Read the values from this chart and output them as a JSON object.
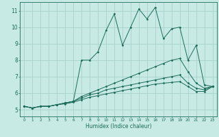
{
  "xlabel": "Humidex (Indice chaleur)",
  "ylabel": "",
  "xlim": [
    -0.5,
    23.5
  ],
  "ylim": [
    4.6,
    11.5
  ],
  "xticks": [
    0,
    1,
    2,
    3,
    4,
    5,
    6,
    7,
    8,
    9,
    10,
    11,
    12,
    13,
    14,
    15,
    16,
    17,
    18,
    19,
    20,
    21,
    22,
    23
  ],
  "yticks": [
    5,
    6,
    7,
    8,
    9,
    10,
    11
  ],
  "bg_color": "#c8eae4",
  "grid_color": "#a0ccc6",
  "line_color": "#1a6b5a",
  "lines": [
    {
      "x": [
        0,
        1,
        2,
        3,
        4,
        5,
        6,
        7,
        8,
        9,
        10,
        11,
        12,
        13,
        14,
        15,
        16,
        17,
        18,
        19,
        20,
        21,
        22,
        23
      ],
      "y": [
        5.2,
        5.1,
        5.2,
        5.2,
        5.3,
        5.4,
        5.5,
        8.0,
        8.0,
        8.5,
        9.8,
        10.8,
        8.9,
        10.0,
        11.1,
        10.5,
        11.2,
        9.3,
        9.9,
        10.0,
        8.0,
        8.9,
        6.5,
        6.4
      ]
    },
    {
      "x": [
        0,
        1,
        2,
        3,
        4,
        5,
        6,
        7,
        8,
        9,
        10,
        11,
        12,
        13,
        14,
        15,
        16,
        17,
        18,
        19,
        20,
        21,
        22,
        23
      ],
      "y": [
        5.2,
        5.1,
        5.2,
        5.2,
        5.3,
        5.4,
        5.5,
        5.8,
        6.0,
        6.2,
        6.4,
        6.6,
        6.8,
        7.0,
        7.2,
        7.4,
        7.6,
        7.8,
        8.0,
        8.1,
        7.3,
        6.6,
        6.3,
        6.4
      ]
    },
    {
      "x": [
        0,
        1,
        2,
        3,
        4,
        5,
        6,
        7,
        8,
        9,
        10,
        11,
        12,
        13,
        14,
        15,
        16,
        17,
        18,
        19,
        20,
        21,
        22,
        23
      ],
      "y": [
        5.2,
        5.1,
        5.2,
        5.2,
        5.3,
        5.4,
        5.5,
        5.7,
        5.9,
        6.0,
        6.2,
        6.3,
        6.4,
        6.5,
        6.6,
        6.7,
        6.8,
        6.9,
        7.0,
        7.1,
        6.6,
        6.3,
        6.2,
        6.4
      ]
    },
    {
      "x": [
        0,
        1,
        2,
        3,
        4,
        5,
        6,
        7,
        8,
        9,
        10,
        11,
        12,
        13,
        14,
        15,
        16,
        17,
        18,
        19,
        20,
        21,
        22,
        23
      ],
      "y": [
        5.2,
        5.1,
        5.2,
        5.2,
        5.3,
        5.35,
        5.45,
        5.6,
        5.75,
        5.85,
        5.95,
        6.05,
        6.15,
        6.25,
        6.35,
        6.45,
        6.55,
        6.6,
        6.65,
        6.7,
        6.4,
        6.1,
        6.1,
        6.4
      ]
    }
  ]
}
